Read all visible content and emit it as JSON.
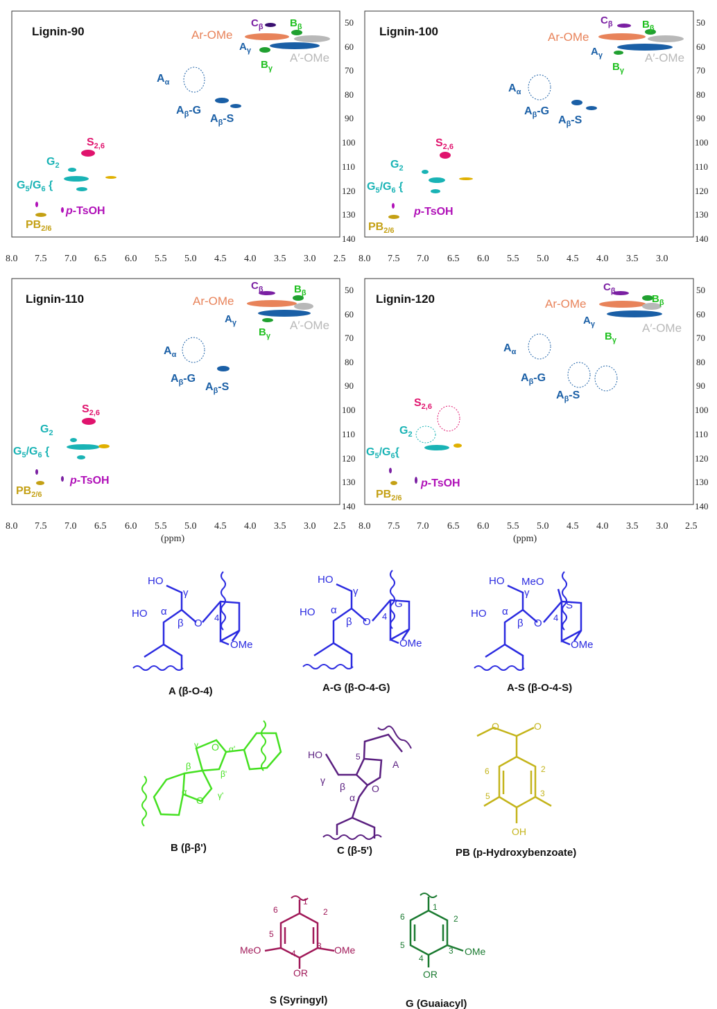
{
  "nmr": {
    "x_ticks": [
      "8.0",
      "7.5",
      "7.0",
      "6.5",
      "6.0",
      "5.5",
      "5.0",
      "4.5",
      "4.0",
      "3.5",
      "3.0",
      "2.5"
    ],
    "y_ticks": [
      "50",
      "60",
      "70",
      "80",
      "90",
      "100",
      "110",
      "120",
      "130",
      "140"
    ],
    "x_unit": "(ppm)",
    "panels": [
      {
        "title": "Lignin-90"
      },
      {
        "title": "Lignin-100"
      },
      {
        "title": "Lignin-110"
      },
      {
        "title": "Lignin-120"
      }
    ],
    "labels": {
      "ArOMe": "Ar-OMe",
      "AOMe": "A′-OMe",
      "Ca": "C",
      "Ca_sub": "β",
      "Bb": "B",
      "Bb_sub": "β",
      "Ag": "A",
      "Ag_sub": "γ",
      "Bg": "B",
      "Bg_sub": "γ",
      "Aa": "A",
      "Aa_sub": "α",
      "ABG": "A",
      "ABG_sub": "β",
      "ABG_tail": "-G",
      "ABS": "A",
      "ABS_sub": "β",
      "ABS_tail": "-S",
      "S26": "S",
      "S26_sub": "2,6",
      "G2": "G",
      "G2_sub": "2",
      "G5": "G",
      "G5_sub": "5",
      "G6": "/G",
      "G6_sub": "6",
      "pTs_italic": "p",
      "pTs_rest": "-TsOH",
      "PB": "PB",
      "PB_sub": "2/6"
    },
    "colors": {
      "ArOMe": "#e8835a",
      "AOMe": "#b8b8b8",
      "C": "#7a1fa2",
      "B": "#20c020",
      "A": "#1a5fa6",
      "S": "#e0136d",
      "G": "#19b3b5",
      "pTs": "#b010b8",
      "PB": "#c4a014"
    }
  },
  "structures": {
    "A": {
      "caption": "A (β-O-4)"
    },
    "AG": {
      "caption": "A-G (β-O-4-G)"
    },
    "AS": {
      "caption": "A-S (β-O-4-S)"
    },
    "B": {
      "caption": "B (β-β')"
    },
    "C": {
      "caption": "C (β-5')"
    },
    "PB": {
      "caption": "PB (p-Hydroxybenzoate)"
    },
    "S": {
      "caption": "S (Syringyl)"
    },
    "G": {
      "caption": "G (Guaiacyl)"
    },
    "atoms": {
      "HO": "HO",
      "OMe": "OMe",
      "MeO": "MeO",
      "O": "O",
      "OH": "OH",
      "OR": "OR",
      "g": "γ",
      "a": "α",
      "b": "β",
      "gp": "γ'",
      "ap": "α'",
      "bp": "β'",
      "n1": "1",
      "n2": "2",
      "n3": "3",
      "n4": "4",
      "n5": "5",
      "n6": "6",
      "G": "G",
      "S": "S",
      "A": "A"
    },
    "colors": {
      "A": "#2a2ae0",
      "B": "#44e020",
      "C": "#5a1f80",
      "PB": "#c4b41a",
      "S": "#a01858",
      "G": "#1a7a30"
    }
  }
}
